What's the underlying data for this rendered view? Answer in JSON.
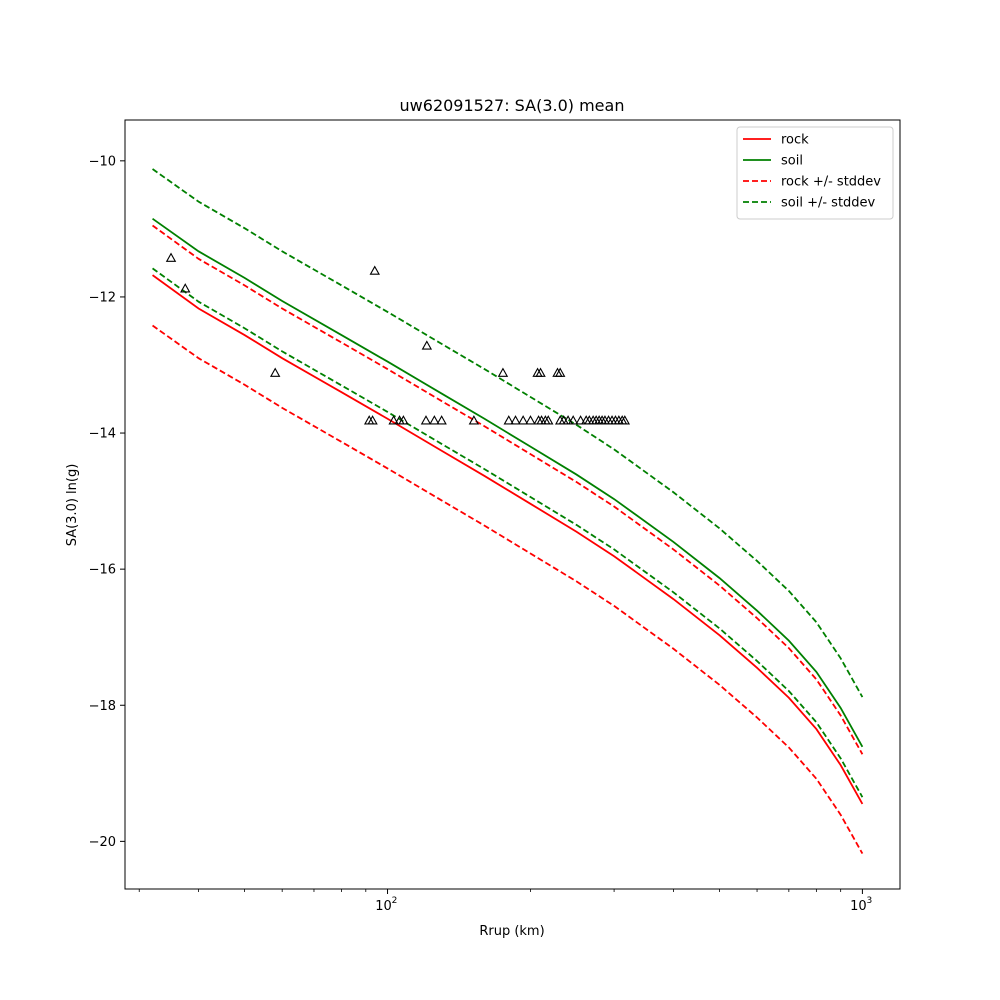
{
  "chart_data": {
    "type": "line",
    "title": "uw62091527: SA(3.0) mean",
    "xlabel": "Rrup (km)",
    "ylabel": "SA(3.0) ln(g)",
    "x_scale": "log",
    "xlim": [
      28,
      1200
    ],
    "ylim": [
      -20.7,
      -9.4
    ],
    "x_ticks_major": [
      {
        "value": 100,
        "label": "10"
      },
      {
        "value": 1000,
        "label": "10"
      }
    ],
    "x_tick_exponent": "2|3",
    "y_ticks": [
      -10,
      -12,
      -14,
      -16,
      -18,
      -20
    ],
    "y_tick_labels": [
      "−10",
      "−12",
      "−14",
      "−16",
      "−18",
      "−20"
    ],
    "grid": false,
    "legend_position": "top-right",
    "series": [
      {
        "name": "rock",
        "color": "#ff0000",
        "style": "solid",
        "x": [
          32,
          40,
          50,
          60,
          80,
          100,
          130,
          160,
          200,
          250,
          300,
          400,
          500,
          600,
          700,
          800,
          900,
          1000
        ],
        "y": [
          -11.68,
          -12.17,
          -12.56,
          -12.9,
          -13.4,
          -13.79,
          -14.26,
          -14.63,
          -15.04,
          -15.45,
          -15.81,
          -16.44,
          -16.97,
          -17.45,
          -17.89,
          -18.35,
          -18.88,
          -19.45
        ]
      },
      {
        "name": "soil",
        "color": "#008000",
        "style": "solid",
        "x": [
          32,
          40,
          50,
          60,
          80,
          100,
          130,
          160,
          200,
          250,
          300,
          400,
          500,
          600,
          700,
          800,
          900,
          1000
        ],
        "y": [
          -10.85,
          -11.33,
          -11.72,
          -12.06,
          -12.56,
          -12.95,
          -13.42,
          -13.79,
          -14.2,
          -14.61,
          -14.97,
          -15.6,
          -16.13,
          -16.61,
          -17.05,
          -17.51,
          -18.04,
          -18.61
        ]
      },
      {
        "name": "rock +/- stddev",
        "color": "#ff0000",
        "style": "dashed",
        "x": [
          32,
          40,
          50,
          60,
          80,
          100,
          130,
          160,
          200,
          250,
          300,
          400,
          500,
          600,
          700,
          800,
          900,
          1000
        ],
        "y": [
          -10.95,
          -11.44,
          -11.83,
          -12.17,
          -12.67,
          -13.06,
          -13.53,
          -13.9,
          -14.31,
          -14.72,
          -15.08,
          -15.71,
          -16.24,
          -16.72,
          -17.16,
          -17.62,
          -18.15,
          -18.72
        ]
      },
      {
        "name": "",
        "color": "#ff0000",
        "style": "dashed",
        "x": [
          32,
          40,
          50,
          60,
          80,
          100,
          130,
          160,
          200,
          250,
          300,
          400,
          500,
          600,
          700,
          800,
          900,
          1000
        ],
        "y": [
          -12.42,
          -12.9,
          -13.29,
          -13.63,
          -14.13,
          -14.52,
          -14.99,
          -15.36,
          -15.77,
          -16.18,
          -16.54,
          -17.17,
          -17.7,
          -18.18,
          -18.62,
          -19.08,
          -19.61,
          -20.18
        ]
      },
      {
        "name": "soil +/- stddev",
        "color": "#008000",
        "style": "dashed",
        "x": [
          32,
          40,
          50,
          60,
          80,
          100,
          130,
          160,
          200,
          250,
          300,
          400,
          500,
          600,
          700,
          800,
          900,
          1000
        ],
        "y": [
          -10.12,
          -10.6,
          -10.99,
          -11.33,
          -11.83,
          -12.22,
          -12.69,
          -13.06,
          -13.47,
          -13.88,
          -14.24,
          -14.87,
          -15.4,
          -15.88,
          -16.32,
          -16.78,
          -17.31,
          -17.88
        ]
      },
      {
        "name": "",
        "color": "#008000",
        "style": "dashed",
        "x": [
          32,
          40,
          50,
          60,
          80,
          100,
          130,
          160,
          200,
          250,
          300,
          400,
          500,
          600,
          700,
          800,
          900,
          1000
        ],
        "y": [
          -11.58,
          -12.07,
          -12.46,
          -12.8,
          -13.3,
          -13.69,
          -14.16,
          -14.53,
          -14.94,
          -15.35,
          -15.71,
          -16.34,
          -16.87,
          -17.35,
          -17.79,
          -18.25,
          -18.78,
          -19.35
        ]
      }
    ],
    "scatter": {
      "marker": "triangle",
      "color": "#000000",
      "x": [
        35,
        37.5,
        58,
        94,
        91.5,
        93,
        121,
        103,
        106,
        108,
        120.5,
        125.5,
        130,
        152,
        175,
        180,
        186,
        193,
        200,
        208,
        211,
        215,
        218,
        207,
        210,
        228,
        231,
        231,
        235,
        240,
        246,
        255,
        262,
        266,
        271,
        275,
        279,
        283,
        287,
        292,
        297,
        302,
        307,
        312,
        316
      ],
      "y": [
        -11.43,
        -11.88,
        -13.12,
        -11.62,
        -13.82,
        -13.82,
        -12.72,
        -13.82,
        -13.82,
        -13.82,
        -13.82,
        -13.82,
        -13.82,
        -13.82,
        -13.12,
        -13.82,
        -13.82,
        -13.82,
        -13.82,
        -13.82,
        -13.82,
        -13.82,
        -13.82,
        -13.12,
        -13.12,
        -13.12,
        -13.12,
        -13.82,
        -13.82,
        -13.82,
        -13.82,
        -13.82,
        -13.82,
        -13.82,
        -13.82,
        -13.82,
        -13.82,
        -13.82,
        -13.82,
        -13.82,
        -13.82,
        -13.82,
        -13.82,
        -13.82,
        -13.82
      ]
    }
  }
}
